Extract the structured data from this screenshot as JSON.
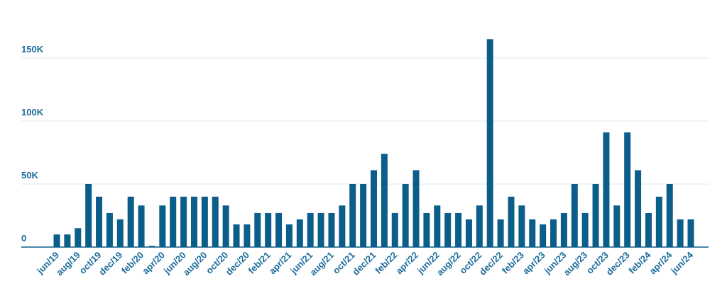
{
  "chart_data": {
    "type": "bar",
    "categories": [
      "jun/19",
      null,
      "aug/19",
      null,
      "oct/19",
      null,
      "dec/19",
      null,
      "feb/20",
      null,
      "apr/20",
      null,
      "jun/20",
      null,
      "aug/20",
      null,
      "oct/20",
      null,
      "dec/20",
      null,
      "feb/21",
      null,
      "apr/21",
      null,
      "jun/21",
      null,
      "aug/21",
      null,
      "oct/21",
      null,
      "dec/21",
      null,
      "feb/22",
      null,
      "apr/22",
      null,
      "jun/22",
      null,
      "aug/22",
      null,
      "oct/22",
      null,
      "dec/22",
      null,
      "feb/23",
      null,
      "apr/23",
      null,
      "jun/23",
      null,
      "aug/23",
      null,
      "oct/23",
      null,
      "dec/23",
      null,
      "feb/24",
      null,
      "apr/24",
      null,
      "jun/24"
    ],
    "values": [
      10000,
      10000,
      15000,
      50000,
      40000,
      27000,
      22000,
      40000,
      33000,
      1000,
      33000,
      40000,
      40000,
      40000,
      40000,
      40000,
      33000,
      18000,
      18000,
      27000,
      27000,
      27000,
      18000,
      22000,
      27000,
      27000,
      27000,
      33000,
      50000,
      50000,
      61000,
      74000,
      27000,
      50000,
      61000,
      27000,
      33000,
      27000,
      27000,
      22000,
      33000,
      165000,
      22000,
      40000,
      33000,
      22000,
      18000,
      22000,
      27000,
      50000,
      27000,
      50000,
      91000,
      33000,
      91000,
      61000,
      27000,
      40000,
      50000,
      22000,
      22000
    ],
    "color": "#0b5d8a",
    "ylim": [
      0,
      180000
    ],
    "yticks": [
      0,
      {
        "value": 50000,
        "label": "50K"
      },
      {
        "value": 100000,
        "label": "100K"
      },
      {
        "value": 150000,
        "label": "150K"
      }
    ],
    "grid": true
  }
}
